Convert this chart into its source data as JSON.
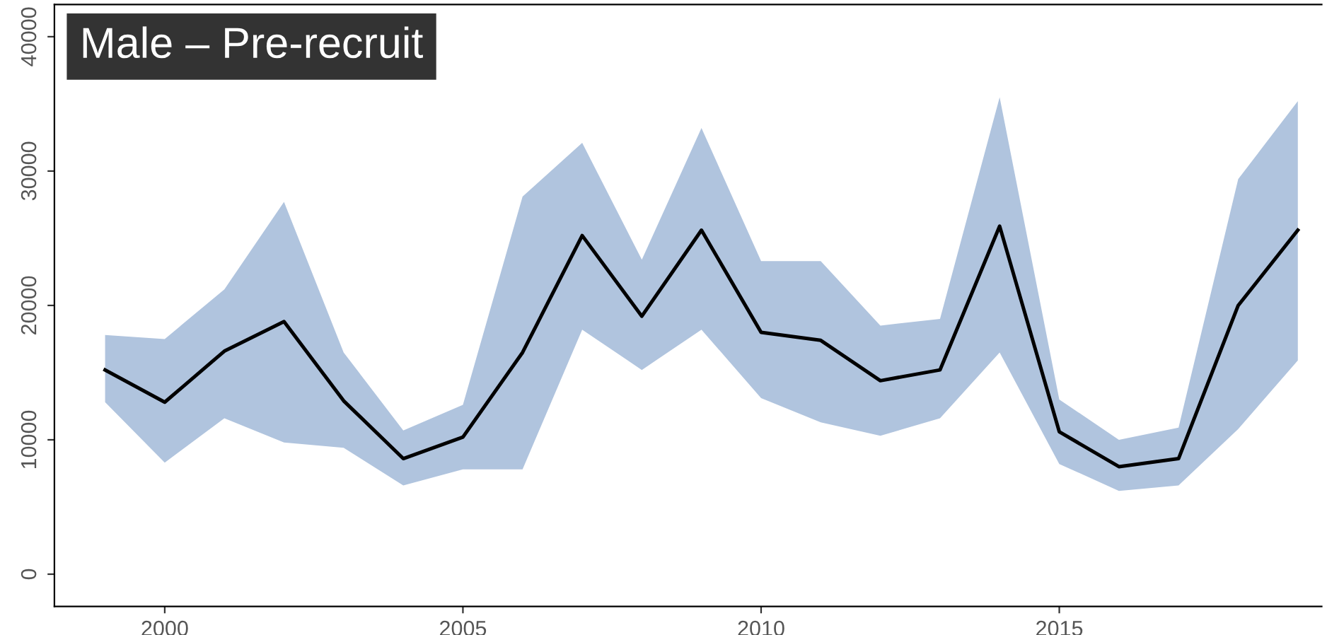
{
  "chart_data": {
    "type": "line",
    "title": "Male – Pre-recruit",
    "x": [
      1999,
      2000,
      2001,
      2002,
      2003,
      2004,
      2005,
      2006,
      2007,
      2008,
      2009,
      2010,
      2011,
      2012,
      2013,
      2014,
      2015,
      2016,
      2017,
      2018,
      2019
    ],
    "series": [
      {
        "color": "#000000",
        "values": [
          15200,
          12800,
          16600,
          18800,
          12900,
          8600,
          10200,
          16500,
          25200,
          19200,
          25600,
          18000,
          17400,
          14400,
          15200,
          25900,
          10600,
          8000,
          8600,
          20000,
          25600
        ],
        "lower": [
          12800,
          8300,
          11600,
          9800,
          9400,
          6600,
          7800,
          7800,
          18200,
          15200,
          18200,
          13100,
          11300,
          10300,
          11600,
          16500,
          8200,
          6200,
          6600,
          10800,
          15900
        ],
        "upper": [
          17800,
          17500,
          21200,
          27700,
          16500,
          10700,
          12600,
          28100,
          32100,
          23400,
          33200,
          23300,
          23300,
          18500,
          19000,
          35500,
          13000,
          10000,
          10900,
          29400,
          35200
        ]
      }
    ],
    "xlim": [
      1998.15,
      2019.4
    ],
    "ylim": [
      -2400,
      42400
    ],
    "xticks": [
      2000,
      2005,
      2010,
      2015
    ],
    "yticks": [
      0,
      10000,
      20000,
      30000,
      40000
    ],
    "grid": false,
    "legend": false,
    "marker": "none",
    "line_style": "solid"
  }
}
